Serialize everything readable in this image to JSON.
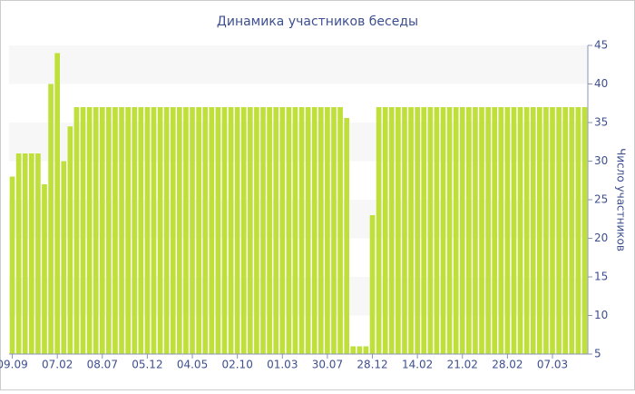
{
  "chart_data": {
    "type": "bar",
    "title": "Динамика участников беседы",
    "y_label": "Число участников",
    "categories": [
      "09.09",
      null,
      null,
      null,
      null,
      null,
      null,
      "07.02",
      null,
      null,
      null,
      null,
      null,
      null,
      "08.07",
      null,
      null,
      null,
      null,
      null,
      null,
      "05.12",
      null,
      null,
      null,
      null,
      null,
      null,
      "04.05",
      null,
      null,
      null,
      null,
      null,
      null,
      "02.10",
      null,
      null,
      null,
      null,
      null,
      null,
      "01.03",
      null,
      null,
      null,
      null,
      null,
      null,
      "30.07",
      null,
      null,
      null,
      null,
      null,
      null,
      "28.12",
      null,
      null,
      null,
      null,
      null,
      null,
      "14.02",
      null,
      null,
      null,
      null,
      null,
      null,
      "21.02",
      null,
      null,
      null,
      null,
      null,
      null,
      "28.02",
      null,
      null,
      null,
      null,
      null,
      null,
      "07.03",
      null,
      null,
      null,
      null,
      null
    ],
    "values": [
      28,
      31,
      31,
      31,
      31,
      27,
      40,
      44,
      30,
      34.5,
      37,
      37,
      37,
      37,
      37,
      37,
      37,
      37,
      37,
      37,
      37,
      37,
      37,
      37,
      37,
      37,
      37,
      37,
      37,
      37,
      37,
      37,
      37,
      37,
      37,
      37,
      37,
      37,
      37,
      37,
      37,
      37,
      37,
      37,
      37,
      37,
      37,
      37,
      37,
      37,
      37,
      37,
      35.6,
      6,
      6,
      6,
      23,
      37,
      37,
      37,
      37,
      37,
      37,
      37,
      37,
      37,
      37,
      37,
      37,
      37,
      37,
      37,
      37,
      37,
      37,
      37,
      37,
      37,
      37,
      37,
      37,
      37,
      37,
      37,
      37,
      37,
      37,
      37,
      37,
      37
    ],
    "color": "#bfe03a",
    "ylim": [
      5,
      45
    ],
    "yticks": [
      5,
      10,
      15,
      20,
      25,
      30,
      35,
      40,
      45
    ],
    "grid": true,
    "y_axis_side": "right"
  }
}
